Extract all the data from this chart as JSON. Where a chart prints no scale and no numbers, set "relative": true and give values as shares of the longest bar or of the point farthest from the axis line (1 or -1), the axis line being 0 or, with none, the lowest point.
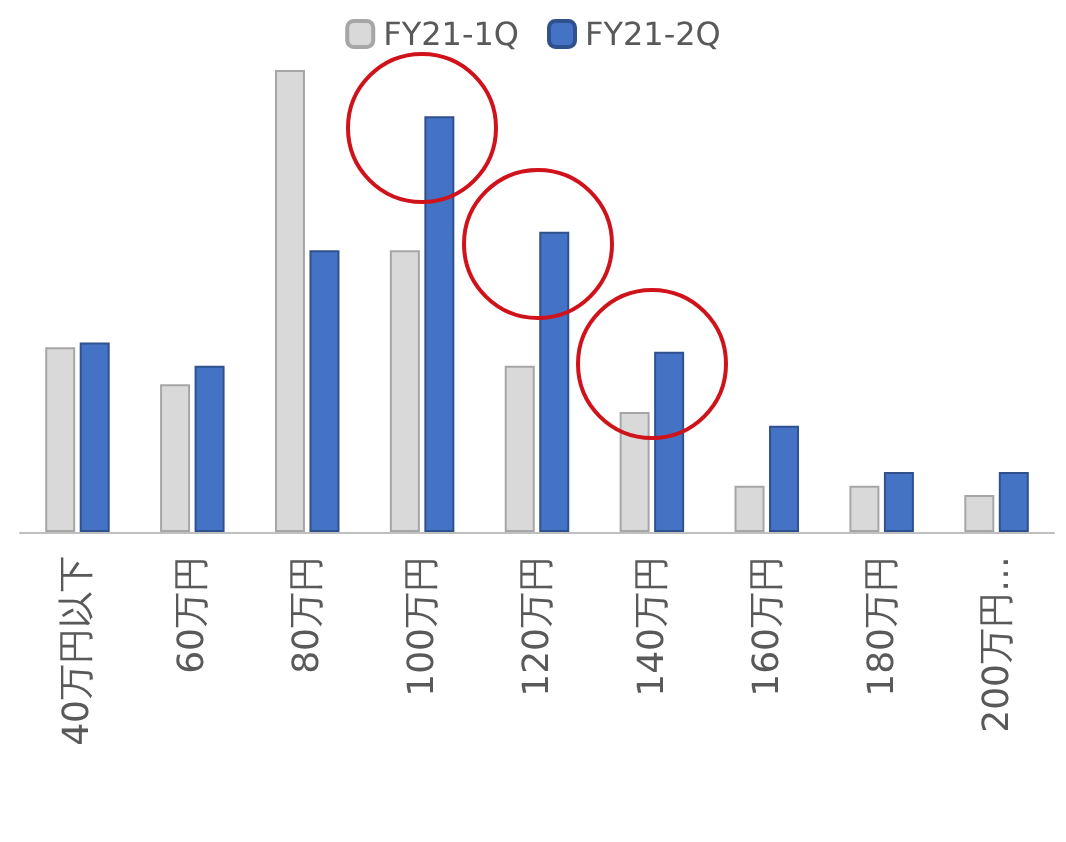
{
  "chart_data": {
    "type": "bar",
    "relative": true,
    "legend": "top",
    "categories": [
      "40万円以下",
      "60万円",
      "80万円",
      "100万円",
      "120万円",
      "140万円",
      "160万円",
      "180万円",
      "200万円…"
    ],
    "series": [
      {
        "name": "FY21-1Q",
        "color": "#d9d9d9",
        "values": [
          0.4,
          0.32,
          1,
          0.61,
          0.36,
          0.26,
          0.1,
          0.1,
          0.08
        ]
      },
      {
        "name": "FY21-2Q",
        "color": "#4472c4",
        "values": [
          0.41,
          0.36,
          0.61,
          0.9,
          0.65,
          0.39,
          0.23,
          0.13,
          0.13
        ]
      }
    ]
  }
}
